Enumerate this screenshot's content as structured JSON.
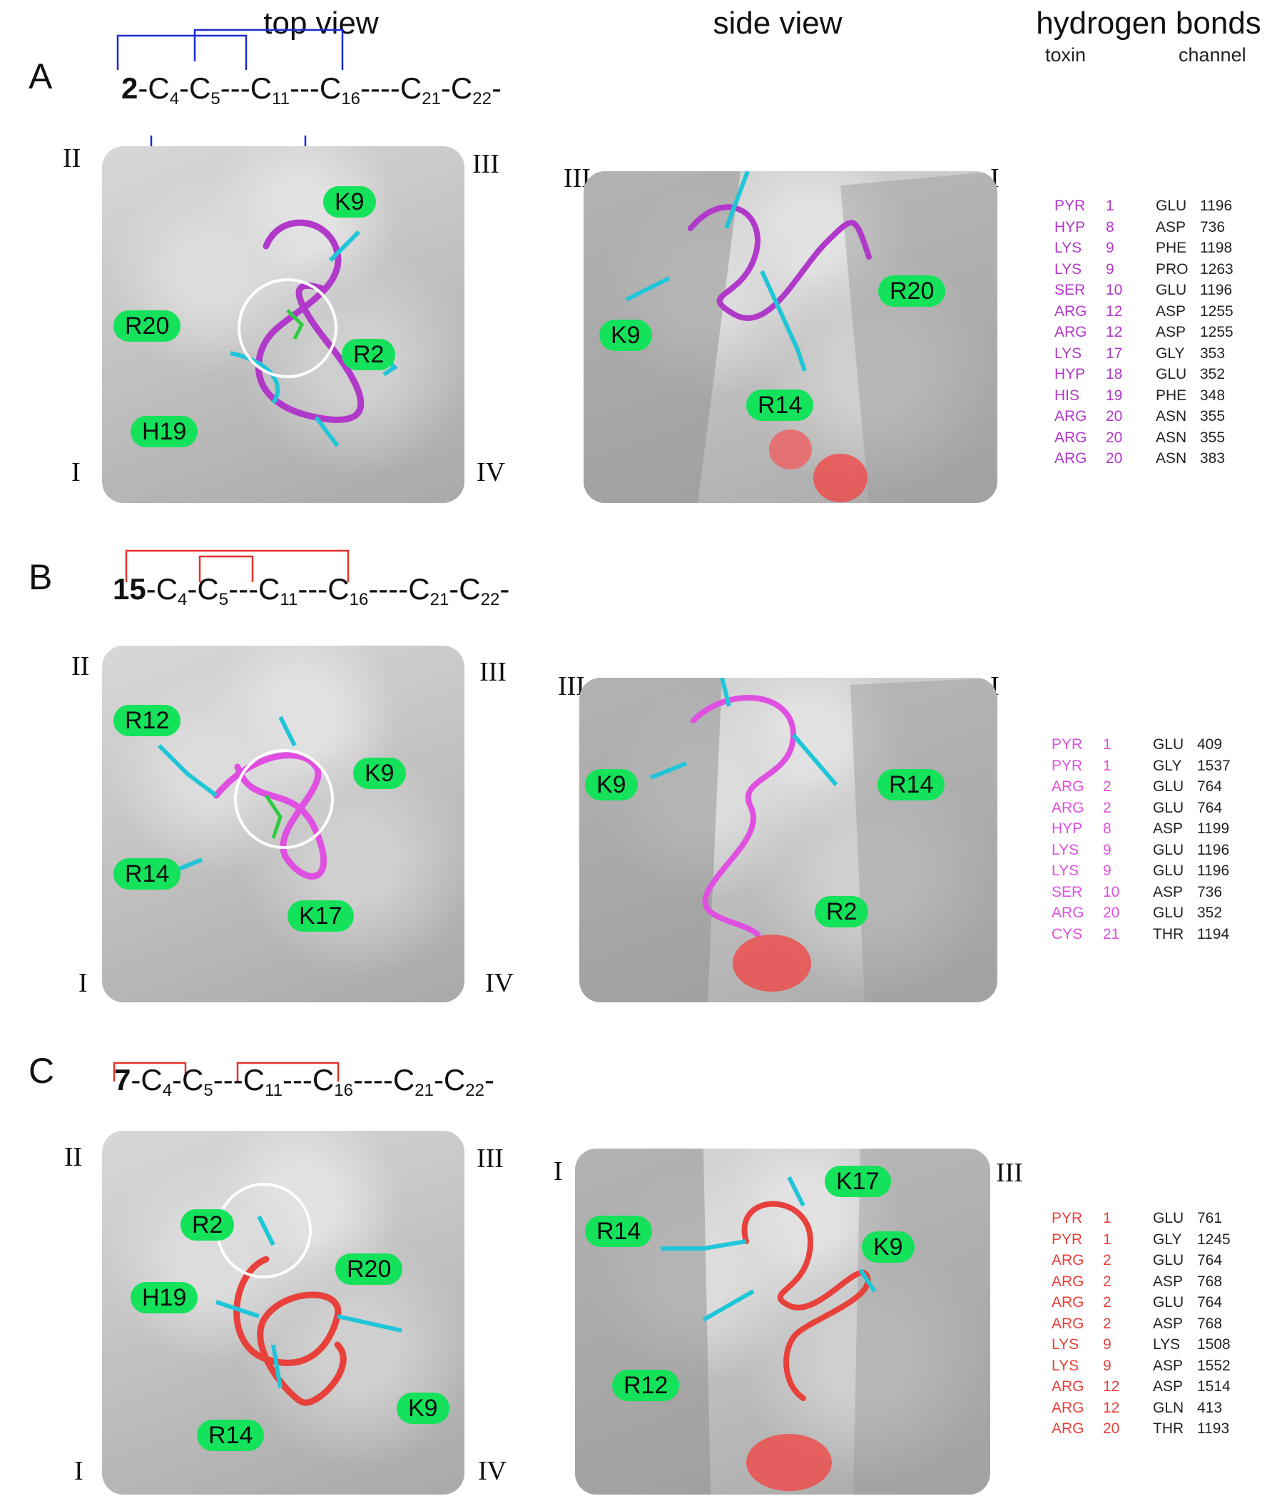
{
  "headers": {
    "top_view": "top view",
    "side_view": "side view",
    "hbonds": "hydrogen bonds",
    "toxin": "toxin",
    "channel": "channel"
  },
  "panels": [
    {
      "label": "A",
      "compound": "2",
      "bridge_color": "#1a2bd6",
      "toxin_color": "#b139c9",
      "top_roman": {
        "tl": "II",
        "tr": "III",
        "bl": "I",
        "br": "IV"
      },
      "side_roman": {
        "left": "III",
        "right": "I"
      },
      "top_tags": [
        "K9",
        "R20",
        "R2",
        "H19"
      ],
      "side_tags": [
        "R20",
        "K9",
        "R14"
      ],
      "hbonds": [
        [
          "PYR",
          "1",
          "GLU",
          "1196"
        ],
        [
          "HYP",
          "8",
          "ASP",
          "736"
        ],
        [
          "LYS",
          "9",
          "PHE",
          "1198"
        ],
        [
          "LYS",
          "9",
          "PRO",
          "1263"
        ],
        [
          "SER",
          "10",
          "GLU",
          "1196"
        ],
        [
          "ARG",
          "12",
          "ASP",
          "1255"
        ],
        [
          "ARG",
          "12",
          "ASP",
          "1255"
        ],
        [
          "LYS",
          "17",
          "GLY",
          "353"
        ],
        [
          "HYP",
          "18",
          "GLU",
          "352"
        ],
        [
          "HIS",
          "19",
          "PHE",
          "348"
        ],
        [
          "ARG",
          "20",
          "ASN",
          "355"
        ],
        [
          "ARG",
          "20",
          "ASN",
          "355"
        ],
        [
          "ARG",
          "20",
          "ASN",
          "383"
        ]
      ]
    },
    {
      "label": "B",
      "compound": "15",
      "bridge_color": "#e8302b",
      "toxin_color": "#e050e0",
      "top_roman": {
        "tl": "II",
        "tr": "III",
        "bl": "I",
        "br": "IV"
      },
      "side_roman": {
        "left": "III",
        "right": "I"
      },
      "top_tags": [
        "R12",
        "K9",
        "R14",
        "K17"
      ],
      "side_tags": [
        "K9",
        "R14",
        "R2"
      ],
      "hbonds": [
        [
          "PYR",
          "1",
          "GLU",
          "409"
        ],
        [
          "PYR",
          "1",
          "GLY",
          "1537"
        ],
        [
          "ARG",
          "2",
          "GLU",
          "764"
        ],
        [
          "ARG",
          "2",
          "GLU",
          "764"
        ],
        [
          "HYP",
          "8",
          "ASP",
          "1199"
        ],
        [
          "LYS",
          "9",
          "GLU",
          "1196"
        ],
        [
          "LYS",
          "9",
          "GLU",
          "1196"
        ],
        [
          "SER",
          "10",
          "ASP",
          "736"
        ],
        [
          "ARG",
          "20",
          "GLU",
          "352"
        ],
        [
          "CYS",
          "21",
          "THR",
          "1194"
        ]
      ]
    },
    {
      "label": "C",
      "compound": "7",
      "bridge_color": "#e8302b",
      "toxin_color": "#e8403a",
      "top_roman": {
        "tl": "II",
        "tr": "III",
        "bl": "I",
        "br": "IV"
      },
      "side_roman": {
        "left": "I",
        "right": "III"
      },
      "top_tags": [
        "R2",
        "H19",
        "R20",
        "K9",
        "R14"
      ],
      "side_tags": [
        "K17",
        "R14",
        "K9",
        "R12"
      ],
      "hbonds": [
        [
          "PYR",
          "1",
          "GLU",
          "761"
        ],
        [
          "PYR",
          "1",
          "GLY",
          "1245"
        ],
        [
          "ARG",
          "2",
          "GLU",
          "764"
        ],
        [
          "ARG",
          "2",
          "ASP",
          "768"
        ],
        [
          "ARG",
          "2",
          "GLU",
          "764"
        ],
        [
          "ARG",
          "2",
          "ASP",
          "768"
        ],
        [
          "LYS",
          "9",
          "LYS",
          "1508"
        ],
        [
          "LYS",
          "9",
          "ASP",
          "1552"
        ],
        [
          "ARG",
          "12",
          "ASP",
          "1514"
        ],
        [
          "ARG",
          "12",
          "GLN",
          "413"
        ],
        [
          "ARG",
          "20",
          "THR",
          "1193"
        ]
      ]
    }
  ]
}
